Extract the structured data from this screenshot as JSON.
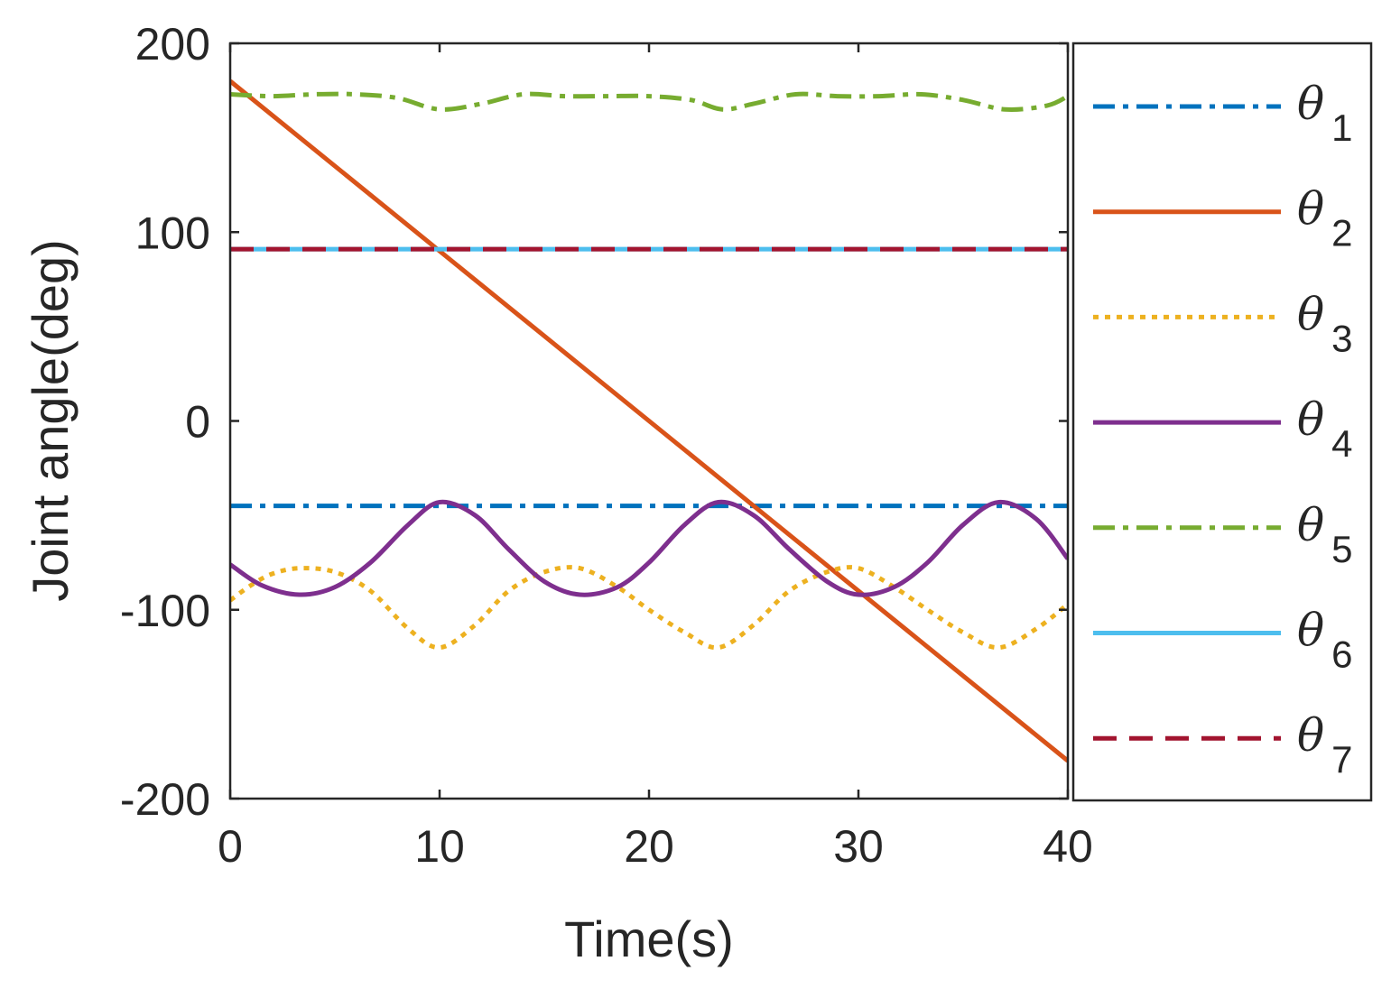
{
  "chart_data": {
    "type": "line",
    "title": "",
    "xlabel": "Time(s)",
    "ylabel": "Joint angle(deg)",
    "xlim": [
      0,
      40
    ],
    "ylim": [
      -200,
      200
    ],
    "xticks": [
      0,
      10,
      20,
      30,
      40
    ],
    "yticks": [
      -200,
      -100,
      0,
      100,
      200
    ],
    "xtick_labels": [
      "0",
      "10",
      "20",
      "30",
      "40"
    ],
    "ytick_labels": [
      "-200",
      "-100",
      "0",
      "100",
      "200"
    ],
    "legend_position": "outside-right",
    "series": [
      {
        "name": "θ1",
        "symbol": "θ",
        "sub": "1",
        "color": "#0072BD",
        "style": "dashdot",
        "x": [
          0,
          40
        ],
        "y": [
          -45,
          -45
        ]
      },
      {
        "name": "θ2",
        "symbol": "θ",
        "sub": "2",
        "color": "#D95319",
        "style": "solid",
        "x": [
          0,
          40
        ],
        "y": [
          180,
          -180
        ]
      },
      {
        "name": "θ3",
        "symbol": "θ",
        "sub": "3",
        "color": "#EDB120",
        "style": "dotted",
        "x": [
          0,
          1,
          2,
          3.3,
          5,
          6.7,
          8.5,
          10,
          11.7,
          13.3,
          15,
          16.7,
          18.5,
          20,
          21.7,
          23.3,
          25,
          26.7,
          28.5,
          30,
          31.7,
          33.3,
          35,
          36.7,
          38.5,
          40
        ],
        "y": [
          -95,
          -87,
          -81,
          -78,
          -80,
          -90,
          -110,
          -120,
          -108,
          -90,
          -80,
          -78,
          -88,
          -100,
          -112,
          -120,
          -108,
          -90,
          -80,
          -78,
          -88,
          -100,
          -112,
          -120,
          -110,
          -97
        ]
      },
      {
        "name": "θ4",
        "symbol": "θ",
        "sub": "4",
        "color": "#7E2F8E",
        "style": "solid",
        "x": [
          0,
          1.5,
          3.3,
          5,
          6.7,
          8.5,
          10,
          11.7,
          13.3,
          15,
          16.7,
          18.5,
          20,
          21.7,
          23.3,
          25,
          26.7,
          28.5,
          30,
          31.7,
          33.3,
          35,
          36.7,
          38.5,
          40
        ],
        "y": [
          -76,
          -87,
          -92,
          -88,
          -75,
          -55,
          -43,
          -50,
          -68,
          -85,
          -92,
          -88,
          -75,
          -55,
          -43,
          -50,
          -68,
          -85,
          -92,
          -88,
          -75,
          -55,
          -43,
          -52,
          -73
        ]
      },
      {
        "name": "θ5",
        "symbol": "θ",
        "sub": "5",
        "color": "#77AC30",
        "style": "dashdot",
        "x": [
          0,
          2,
          4,
          6,
          8,
          10,
          12,
          14,
          16,
          18,
          20,
          22,
          23.5,
          25,
          27,
          29,
          31,
          33,
          35,
          37,
          39,
          40
        ],
        "y": [
          173,
          172,
          173,
          173,
          171,
          165,
          168,
          173,
          172,
          172,
          172,
          170,
          165,
          168,
          173,
          172,
          172,
          173,
          170,
          165,
          167,
          172
        ]
      },
      {
        "name": "θ6",
        "symbol": "θ",
        "sub": "6",
        "color": "#4DBEEE",
        "style": "solid",
        "x": [
          0,
          40
        ],
        "y": [
          91,
          91
        ]
      },
      {
        "name": "θ7",
        "symbol": "θ",
        "sub": "7",
        "color": "#A2142F",
        "style": "dashed",
        "x": [
          0,
          40
        ],
        "y": [
          91,
          91
        ]
      }
    ]
  }
}
